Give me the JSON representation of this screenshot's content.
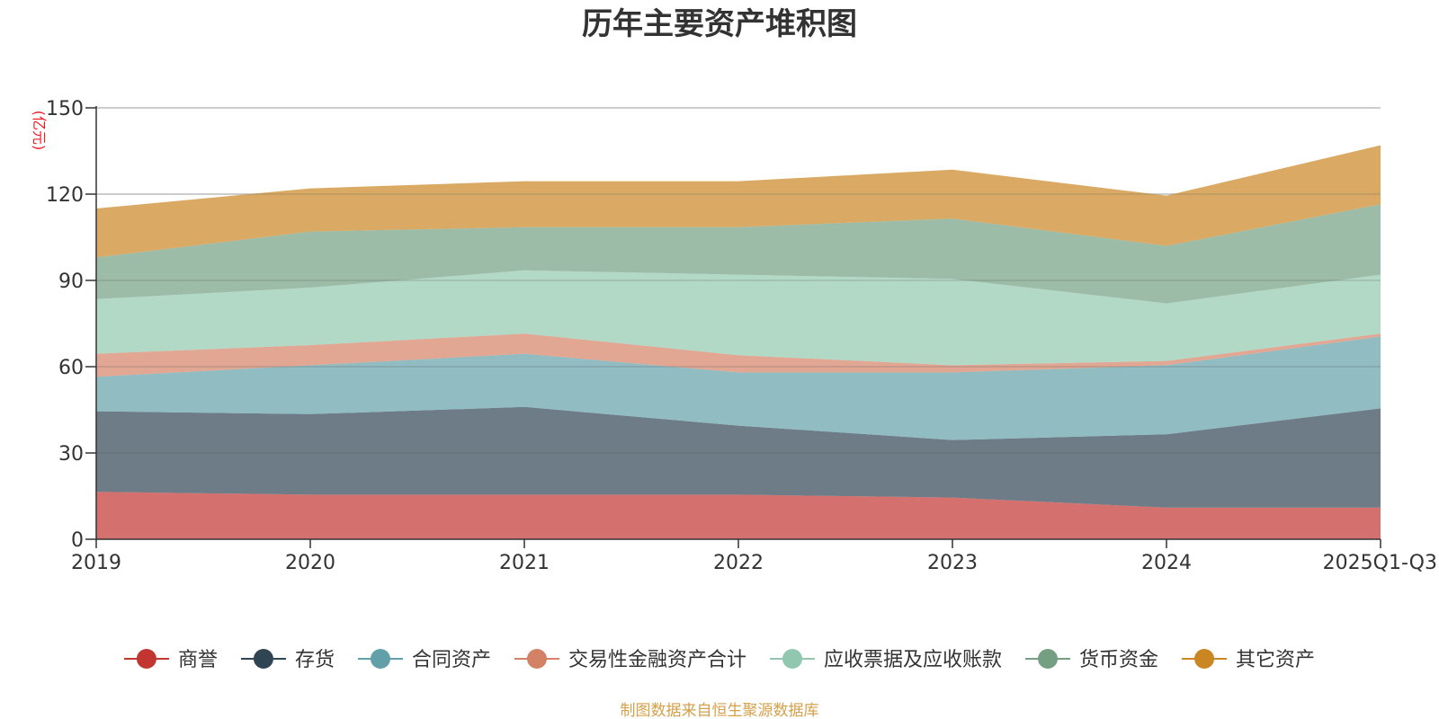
{
  "chart_data": {
    "type": "area",
    "stacked": true,
    "title": "历年主要资产堆积图",
    "unit_label": "(亿元)",
    "source": "制图数据来自恒生聚源数据库",
    "categories": [
      "2019",
      "2020",
      "2021",
      "2022",
      "2023",
      "2024",
      "2025Q1-Q3"
    ],
    "ylim": [
      0,
      150
    ],
    "yticks": [
      0,
      30,
      60,
      90,
      120,
      150
    ],
    "grid": true,
    "legend_position": "bottom",
    "series": [
      {
        "name": "商誉",
        "color": "#c23531",
        "values": [
          16.5,
          15.5,
          15.5,
          15.5,
          14.5,
          11,
          11
        ]
      },
      {
        "name": "存货",
        "color": "#2f4554",
        "values": [
          28,
          28,
          30.5,
          24,
          20,
          25.5,
          34.5
        ]
      },
      {
        "name": "合同资产",
        "color": "#61a0a8",
        "values": [
          12,
          17,
          18.5,
          18.5,
          23.5,
          24,
          25
        ]
      },
      {
        "name": "交易性金融资产合计",
        "color": "#d48265",
        "values": [
          8,
          7,
          7,
          6,
          2.5,
          1.5,
          1
        ]
      },
      {
        "name": "应收票据及应收账款",
        "color": "#91c7ae",
        "values": [
          19,
          20,
          22,
          28,
          30,
          20,
          20.5
        ]
      },
      {
        "name": "货币资金",
        "color": "#749f83",
        "values": [
          14.5,
          19.5,
          15,
          16.5,
          21,
          20,
          24.5
        ]
      },
      {
        "name": "其它资产",
        "color": "#ca8622",
        "values": [
          17,
          15,
          16,
          16,
          17,
          17.5,
          20.5
        ]
      }
    ]
  }
}
